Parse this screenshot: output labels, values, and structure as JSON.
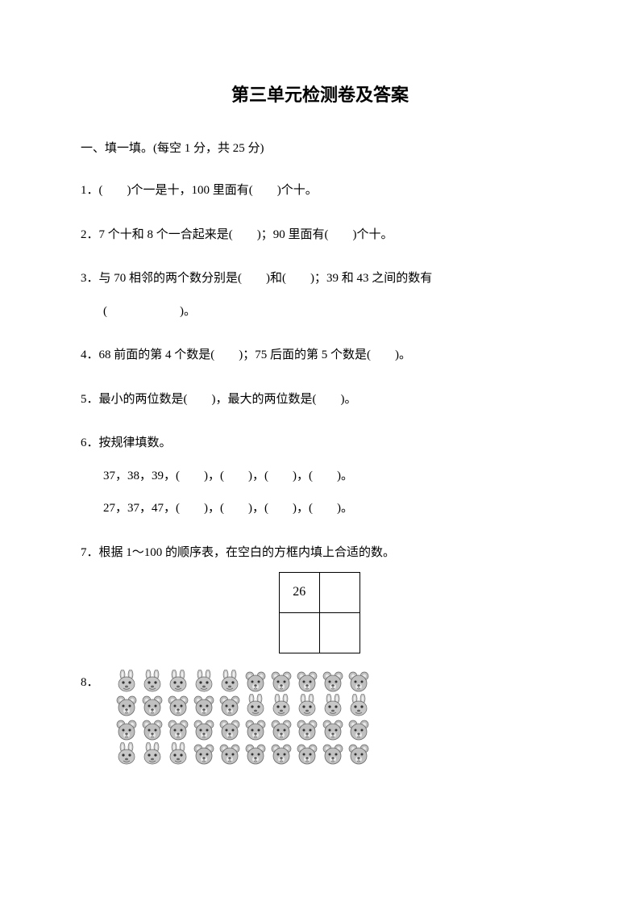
{
  "title": "第三单元检测卷及答案",
  "section1": {
    "header": "一、填一填。(每空 1 分，共 25 分)"
  },
  "q1": {
    "text": "1．(　　)个一是十，100 里面有(　　)个十。"
  },
  "q2": {
    "text": "2．7 个十和 8 个一合起来是(　　)；90 里面有(　　)个十。"
  },
  "q3": {
    "line1": "3．与 70 相邻的两个数分别是(　　)和(　　)；39 和 43 之间的数有",
    "line2": "(　　　　　　)。"
  },
  "q4": {
    "text": "4．68 前面的第 4 个数是(　　)；75 后面的第 5 个数是(　　)。"
  },
  "q5": {
    "text": "5．最小的两位数是(　　)，最大的两位数是(　　)。"
  },
  "q6": {
    "header": "6．按规律填数。",
    "row1": "37，38，39，(　　)，(　　)，(　　)，(　　)。",
    "row2": "27，37，47，(　　)，(　　)，(　　)，(　　)。"
  },
  "q7": {
    "text": "7．根据 1～100 的顺序表，在空白的方框内填上合适的数。",
    "grid_value": "26"
  },
  "q8": {
    "num": "8．",
    "rows": [
      [
        "rabbit",
        "rabbit",
        "rabbit",
        "rabbit",
        "rabbit",
        "bear",
        "bear",
        "bear",
        "bear",
        "bear"
      ],
      [
        "bear",
        "bear",
        "bear",
        "bear",
        "bear",
        "rabbit",
        "rabbit",
        "rabbit",
        "rabbit",
        "rabbit"
      ],
      [
        "bear",
        "bear",
        "bear",
        "bear",
        "bear",
        "bear",
        "bear",
        "bear",
        "bear",
        "bear"
      ],
      [
        "rabbit",
        "rabbit",
        "rabbit",
        "bear",
        "bear",
        "bear",
        "bear",
        "bear",
        "bear",
        "bear"
      ]
    ]
  },
  "colors": {
    "text": "#000000",
    "background": "#ffffff",
    "animal_gray": "#b8b8b8",
    "animal_dark": "#5a5a5a"
  }
}
